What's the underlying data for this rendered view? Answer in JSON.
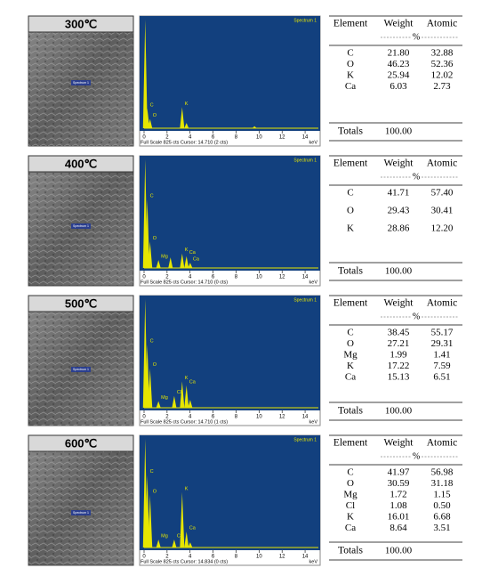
{
  "spectrum_name": "Spectrum 1",
  "spectrum_axis": {
    "xlim": [
      0,
      15
    ],
    "xticks": [
      0,
      2,
      4,
      6,
      8,
      10,
      12,
      14
    ],
    "unit": "keV",
    "ylim": [
      0,
      825
    ]
  },
  "table_header": [
    "Element",
    "Weight",
    "Atomic"
  ],
  "table_unit": "%",
  "totals_label": "Totals",
  "rows": [
    {
      "temperature": "300℃",
      "full_scale": "Full Scale 825 cts Cursor: 14.710  (2 cts)",
      "spectrum": {
        "peaks": [
          {
            "kev": 0.1,
            "cts": 825
          },
          {
            "kev": 0.28,
            "cts": 150,
            "label": "C"
          },
          {
            "kev": 0.52,
            "cts": 70,
            "label": "O"
          },
          {
            "kev": 3.31,
            "cts": 160,
            "label": "K"
          },
          {
            "kev": 3.69,
            "cts": 40
          },
          {
            "kev": 9.6,
            "cts": 15
          }
        ]
      },
      "table": [
        [
          "C",
          "21.80",
          "32.88"
        ],
        [
          "O",
          "46.23",
          "52.36"
        ],
        [
          "K",
          "25.94",
          "12.02"
        ],
        [
          "Ca",
          "6.03",
          "2.73"
        ]
      ],
      "total": "100.00"
    },
    {
      "temperature": "400℃",
      "full_scale": "Full Scale 825 cts Cursor: 14.710  (0 cts)",
      "spectrum": {
        "peaks": [
          {
            "kev": 0.1,
            "cts": 825
          },
          {
            "kev": 0.28,
            "cts": 520,
            "label": "C"
          },
          {
            "kev": 0.52,
            "cts": 200,
            "label": "O"
          },
          {
            "kev": 1.25,
            "cts": 60,
            "label": "Mg"
          },
          {
            "kev": 2.3,
            "cts": 80
          },
          {
            "kev": 3.31,
            "cts": 110,
            "label": "K"
          },
          {
            "kev": 3.69,
            "cts": 90,
            "label": "Ca"
          },
          {
            "kev": 4.01,
            "cts": 40,
            "label": "Ca"
          }
        ]
      },
      "table": [
        [
          "C",
          "41.71",
          "57.40"
        ],
        [
          "O",
          "29.43",
          "30.41"
        ],
        [
          "K",
          "28.86",
          "12.20"
        ]
      ],
      "total": "100.00"
    },
    {
      "temperature": "500℃",
      "full_scale": "Full Scale 825 cts Cursor: 14.710  (1 cts)",
      "spectrum": {
        "peaks": [
          {
            "kev": 0.1,
            "cts": 825
          },
          {
            "kev": 0.28,
            "cts": 480,
            "label": "C"
          },
          {
            "kev": 0.52,
            "cts": 300,
            "label": "O"
          },
          {
            "kev": 1.25,
            "cts": 50,
            "label": "Mg"
          },
          {
            "kev": 2.62,
            "cts": 90,
            "label": "Cl"
          },
          {
            "kev": 3.31,
            "cts": 200,
            "label": "K"
          },
          {
            "kev": 3.69,
            "cts": 170,
            "label": "Ca"
          },
          {
            "kev": 4.01,
            "cts": 60
          }
        ]
      },
      "table": [
        [
          "C",
          "38.45",
          "55.17"
        ],
        [
          "O",
          "27.21",
          "29.31"
        ],
        [
          "Mg",
          "1.99",
          "1.41"
        ],
        [
          "K",
          "17.22",
          "7.59"
        ],
        [
          "Ca",
          "15.13",
          "6.51"
        ]
      ],
      "total": "100.00"
    },
    {
      "temperature": "600℃",
      "full_scale": "Full Scale 825 cts Cursor: 14.834  (0 cts)",
      "spectrum": {
        "peaks": [
          {
            "kev": 0.1,
            "cts": 825
          },
          {
            "kev": 0.28,
            "cts": 550,
            "label": "C"
          },
          {
            "kev": 0.52,
            "cts": 400,
            "label": "O"
          },
          {
            "kev": 1.25,
            "cts": 60,
            "label": "Mg"
          },
          {
            "kev": 2.62,
            "cts": 60,
            "label": "Cl"
          },
          {
            "kev": 3.31,
            "cts": 420,
            "label": "K"
          },
          {
            "kev": 3.69,
            "cts": 120,
            "label": "Ca"
          },
          {
            "kev": 4.01,
            "cts": 40
          }
        ]
      },
      "table": [
        [
          "C",
          "41.97",
          "56.98"
        ],
        [
          "O",
          "30.59",
          "31.18"
        ],
        [
          "Mg",
          "1.72",
          "1.15"
        ],
        [
          "Cl",
          "1.08",
          "0.50"
        ],
        [
          "K",
          "16.01",
          "6.68"
        ],
        [
          "Ca",
          "8.64",
          "3.51"
        ]
      ],
      "total": "100.00"
    }
  ]
}
